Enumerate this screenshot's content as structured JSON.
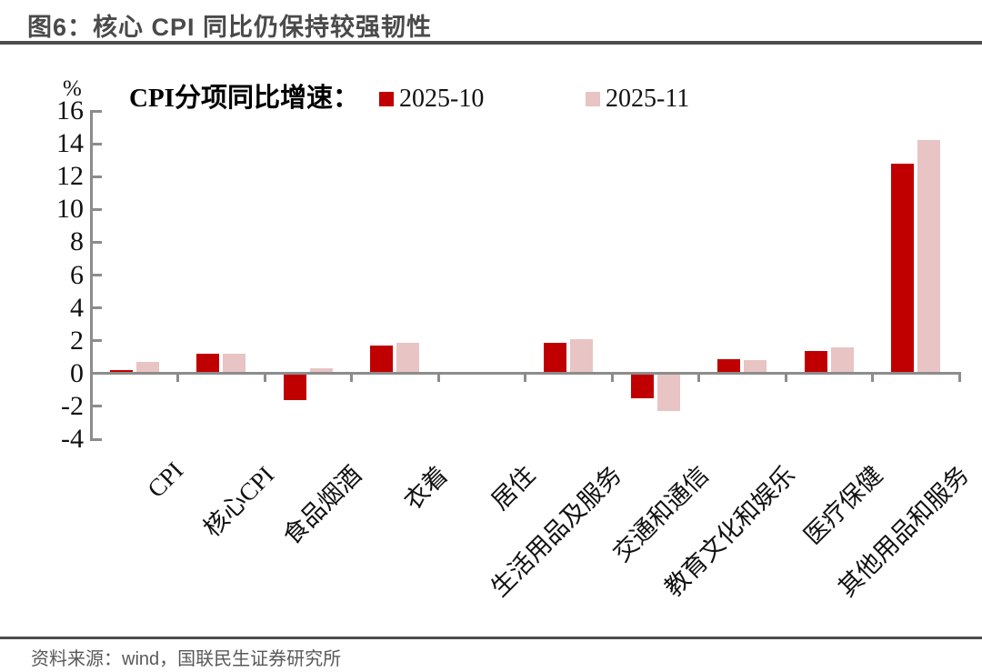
{
  "header": {
    "title": "图6：核心 CPI 同比仍保持较强韧性"
  },
  "footer": {
    "source": "资料来源：wind，国联民生证券研究所"
  },
  "colors": {
    "series_2025_10": "#c00000",
    "series_2025_11": "#e8c4c4",
    "axis": "#8c8c8c",
    "title_text": "#4a4a4a",
    "divider": "#4d4d4d",
    "source_text": "#595959"
  },
  "chart_data": {
    "type": "bar",
    "title": "CPI分项同比增速：",
    "unit": "%",
    "categories": [
      "CPI",
      "核心CPI",
      "食品烟酒",
      "衣着",
      "居住",
      "生活用品及服务",
      "交通和通信",
      "教育文化和娱乐",
      "医疗保健",
      "其他用品和服务"
    ],
    "series": [
      {
        "name": "2025-10",
        "color": "#c00000",
        "values": [
          0.2,
          1.2,
          -1.6,
          1.7,
          0.1,
          1.9,
          -1.5,
          0.9,
          1.4,
          12.8
        ]
      },
      {
        "name": "2025-11",
        "color": "#e8c4c4",
        "values": [
          0.7,
          1.2,
          0.3,
          1.9,
          0.1,
          2.1,
          -2.3,
          0.8,
          1.6,
          14.2
        ]
      }
    ],
    "ylim": [
      -4,
      16
    ],
    "ytick_step": 2,
    "yticks": [
      16,
      14,
      12,
      10,
      8,
      6,
      4,
      2,
      0,
      -2,
      -4
    ],
    "legend_position": "top",
    "grid": false
  }
}
